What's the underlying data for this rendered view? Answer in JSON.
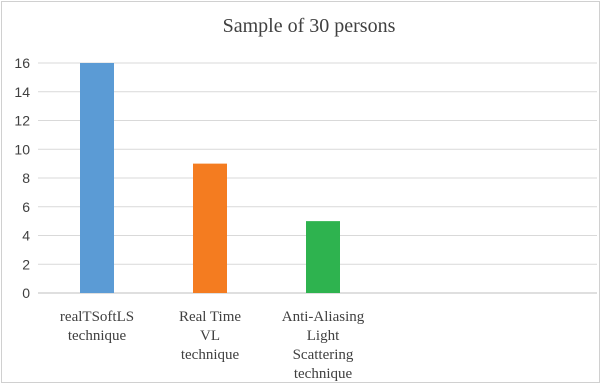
{
  "chart_data": {
    "type": "bar",
    "title": "Sample of 30 persons",
    "categories": [
      [
        "realTSoftLS",
        "technique"
      ],
      [
        "Real Time",
        "VL",
        "technique"
      ],
      [
        "Anti-Aliasing",
        "Light",
        "Scattering",
        "technique"
      ]
    ],
    "values": [
      16,
      9,
      5
    ],
    "colors": [
      "#5b9bd5",
      "#f47c20",
      "#2eb34f"
    ],
    "ylim": [
      0,
      16
    ],
    "yticks": [
      0,
      2,
      4,
      6,
      8,
      10,
      12,
      14,
      16
    ],
    "grid": true,
    "legend": "none"
  }
}
